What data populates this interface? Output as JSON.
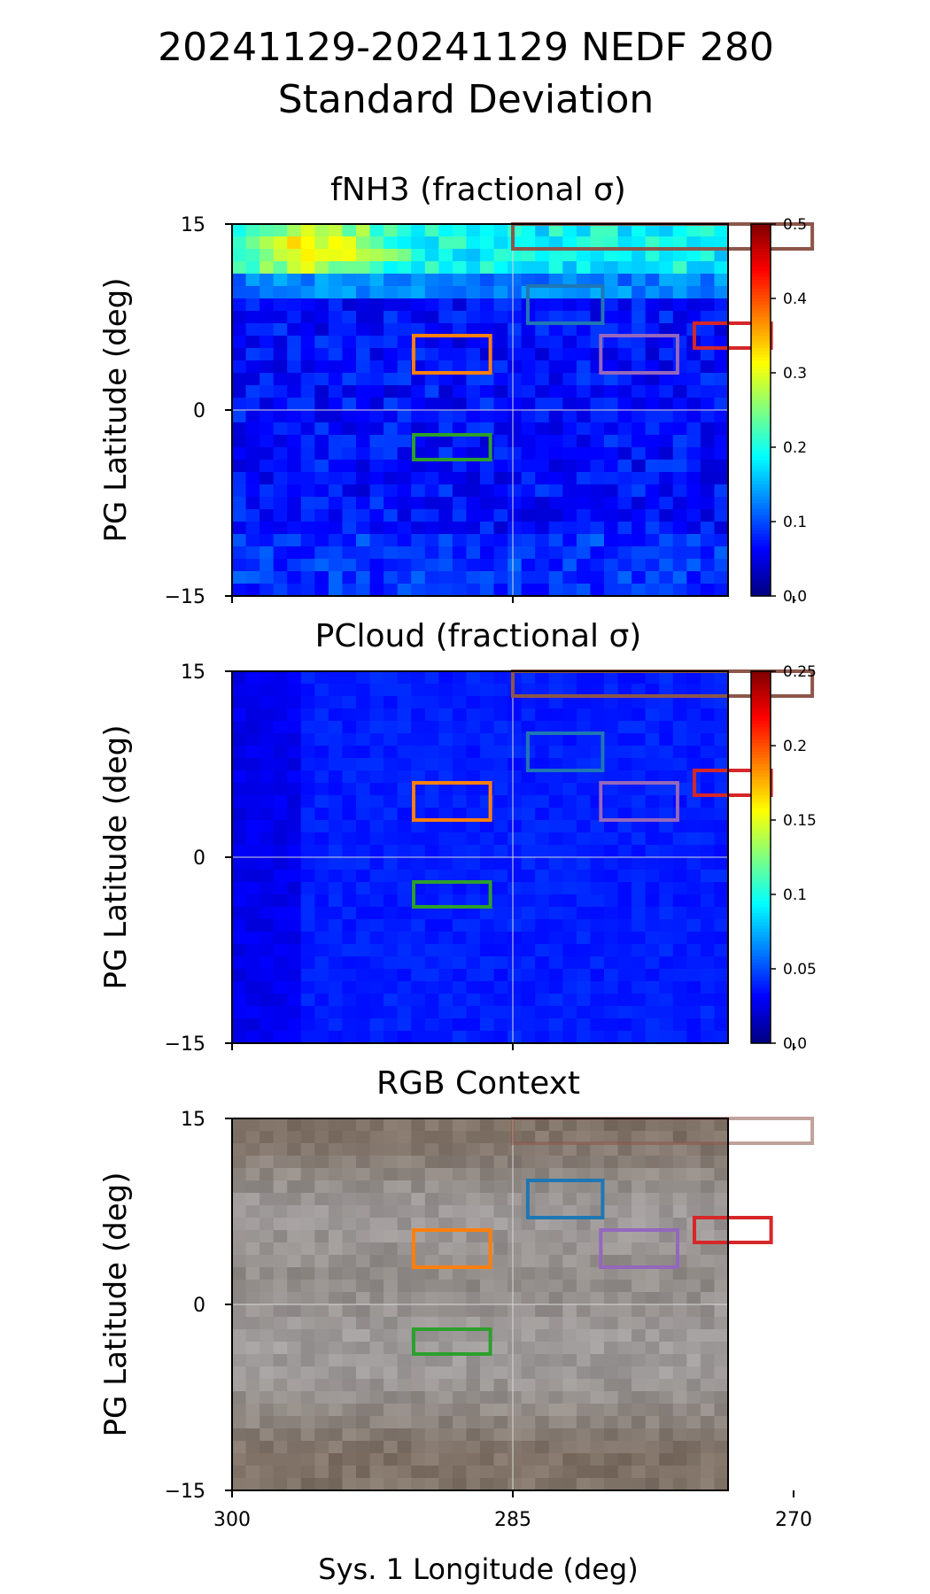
{
  "figure": {
    "title_line1": "20241129-20241129 NEDF 280",
    "title_line2": "Standard Deviation"
  },
  "colors": {
    "frame": "#000000",
    "gridline": "#d9d9d9",
    "box_brown": "#8c564b",
    "box_blue": "#1f77b4",
    "box_orange": "#ff7f0e",
    "box_purple": "#9467bd",
    "box_red": "#d62728",
    "box_green": "#2ca02c"
  },
  "chart_data": [
    {
      "type": "heatmap",
      "title": "fNH3 (fractional σ)",
      "xlabel": "",
      "ylabel": "PG Latitude (deg)",
      "xlim": [
        300,
        273.5
      ],
      "ylim": [
        -15,
        15
      ],
      "yticks": [
        15,
        0,
        -15
      ],
      "ytick_labels": [
        "15",
        "0",
        "−15"
      ],
      "xticks": [
        300,
        285,
        270
      ],
      "xtick_labels": [],
      "grid": true,
      "colormap": "jet",
      "colorbar": {
        "range": [
          0.0,
          0.5
        ],
        "ticks": [
          0.0,
          0.1,
          0.2,
          0.3,
          0.4,
          0.5
        ],
        "tick_labels": [
          "0.0",
          "0.1",
          "0.2",
          "0.3",
          "0.4",
          "0.5"
        ]
      },
      "field_summary": "High values (0.15-0.3) in band 11-15 deg latitude, peak ~0.3 near 296 deg lon; background ~0.03-0.1 elsewhere"
    },
    {
      "type": "heatmap",
      "title": "PCloud (fractional σ)",
      "xlabel": "",
      "ylabel": "PG Latitude (deg)",
      "xlim": [
        300,
        273.5
      ],
      "ylim": [
        -15,
        15
      ],
      "yticks": [
        15,
        0,
        -15
      ],
      "ytick_labels": [
        "15",
        "0",
        "−15"
      ],
      "xticks": [
        300,
        285,
        270
      ],
      "xtick_labels": [],
      "grid": true,
      "colormap": "jet",
      "colorbar": {
        "range": [
          0.0,
          0.25
        ],
        "ticks": [
          0.0,
          0.05,
          0.1,
          0.15,
          0.2,
          0.25
        ],
        "tick_labels": [
          "0.0",
          "0.05",
          "0.1",
          "0.15",
          "0.2",
          "0.25"
        ]
      },
      "field_summary": "Uniform low values ~0.02-0.04; slightly higher ~0.035-0.045 between 296.5 and 271.5 deg lon"
    },
    {
      "type": "heatmap",
      "title": "RGB Context",
      "xlabel": "Sys. 1 Longitude (deg)",
      "ylabel": "PG Latitude (deg)",
      "xlim": [
        300,
        273.5
      ],
      "ylim": [
        -15,
        15
      ],
      "yticks": [
        15,
        0,
        -15
      ],
      "ytick_labels": [
        "15",
        "0",
        "−15"
      ],
      "xticks": [
        300,
        285,
        270
      ],
      "xtick_labels": [
        "300",
        "285",
        "270"
      ],
      "grid": true,
      "colormap": "rgb image",
      "field_summary": "Jupiter RGB context: brownish belts near 15 and -12 deg, pale grey-blue zone near 0 to -8 deg"
    }
  ],
  "regions": [
    {
      "name": "brown",
      "lon": [
        285,
        269
      ],
      "lat": [
        13,
        15
      ]
    },
    {
      "name": "blue",
      "lon": [
        284.2,
        280.2
      ],
      "lat": [
        7,
        10
      ]
    },
    {
      "name": "orange",
      "lon": [
        290.3,
        286.2
      ],
      "lat": [
        3,
        6
      ]
    },
    {
      "name": "purple",
      "lon": [
        280.3,
        276.2
      ],
      "lat": [
        3,
        6
      ]
    },
    {
      "name": "red",
      "lon": [
        275.3,
        271.2
      ],
      "lat": [
        5,
        7
      ]
    },
    {
      "name": "green",
      "lon": [
        290.3,
        286.2
      ],
      "lat": [
        -4,
        -2
      ]
    }
  ]
}
